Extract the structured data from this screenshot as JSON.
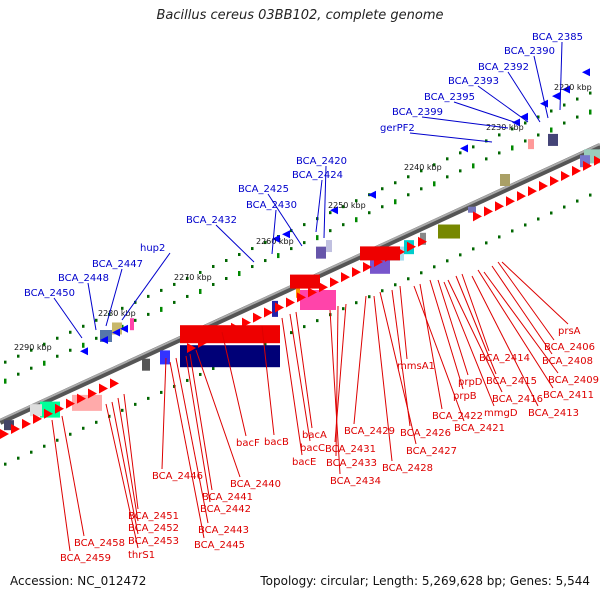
{
  "title": "Bacillus cereus 03BB102, complete genome",
  "footer": {
    "accession": "Accession: NC_012472",
    "summary": "Topology: circular; Length: 5,269,628 bp; Genes: 5,544"
  },
  "colors": {
    "label_upper": "#0000cc",
    "label_lower": "#dd0000",
    "backbone": "#888888",
    "forward_arrow": "#ff0000",
    "reverse_arrow": "#0000ff",
    "tick_mark": "#008800"
  },
  "scale_ticks": [
    "2220 kbp",
    "2230 kbp",
    "2240 kbp",
    "2250 kbp",
    "2260 kbp",
    "2270 kbp",
    "2280 kbp",
    "2290 kbp"
  ],
  "upper_labels": [
    "BCA_2385",
    "BCA_2390",
    "BCA_2392",
    "BCA_2393",
    "BCA_2395",
    "BCA_2399",
    "gerPF2",
    "BCA_2420",
    "BCA_2424",
    "BCA_2425",
    "BCA_2430",
    "BCA_2432",
    "hup2",
    "BCA_2447",
    "BCA_2448",
    "BCA_2450"
  ],
  "lower_labels": [
    "prsA",
    "BCA_2406",
    "BCA_2408",
    "BCA_2409",
    "BCA_2411",
    "BCA_2413",
    "BCA_2414",
    "BCA_2415",
    "BCA_2416",
    "mmgD",
    "prpD",
    "prpB",
    "BCA_2422",
    "BCA_2421",
    "mmsA1",
    "BCA_2426",
    "BCA_2427",
    "BCA_2428",
    "BCA_2429",
    "BCA_2431",
    "BCA_2433",
    "BCA_2434",
    "bacA",
    "bacC",
    "bacE",
    "bacB",
    "bacF",
    "BCA_2440",
    "BCA_2441",
    "BCA_2442",
    "BCA_2443",
    "BCA_2445",
    "BCA_2446",
    "BCA_2451",
    "BCA_2452",
    "BCA_2453",
    "thrS1",
    "BCA_2458",
    "BCA_2459"
  ]
}
